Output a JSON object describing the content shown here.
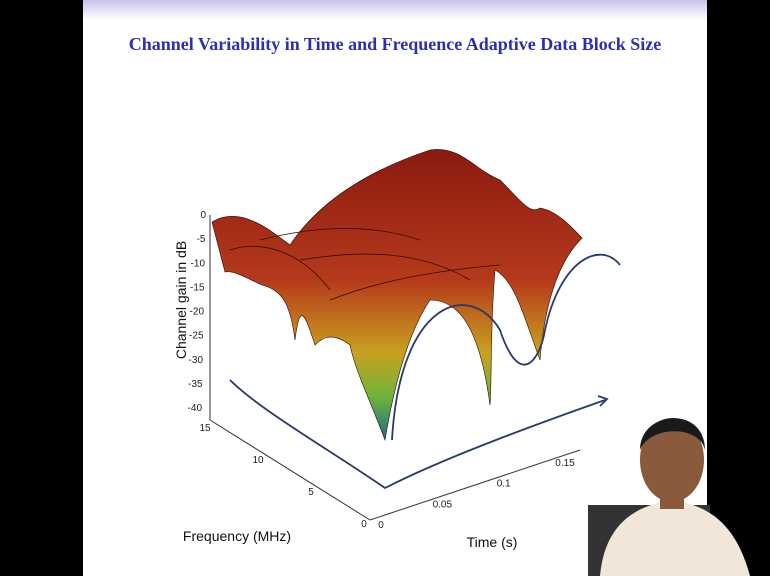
{
  "slide": {
    "title": "Channel Variability in Time and Frequence  Adaptive Data Block Size",
    "z_axis": {
      "label": "Channel gain in dB",
      "ticks": [
        "0",
        "-5",
        "-10",
        "-15",
        "-20",
        "-25",
        "-30",
        "-35",
        "-40"
      ]
    },
    "frequency_axis": {
      "label": "Frequency (MHz)",
      "ticks": [
        "15",
        "10",
        "5",
        "0"
      ]
    },
    "time_axis": {
      "label": "Time (s)",
      "ticks": [
        "0",
        "0.05",
        "0.1",
        "0.15"
      ]
    }
  }
}
